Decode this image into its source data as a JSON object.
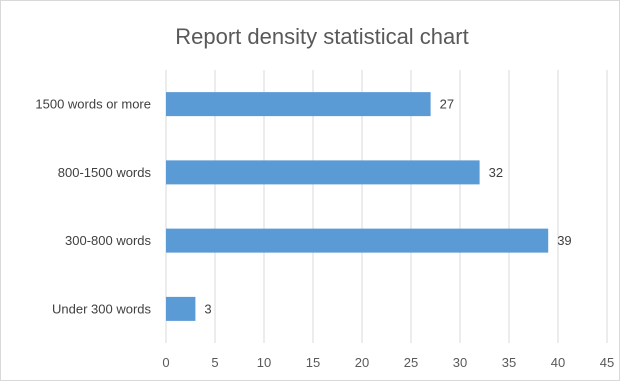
{
  "chart_data": {
    "type": "bar",
    "orientation": "horizontal",
    "title": "Report density statistical chart",
    "categories": [
      "1500 words or more",
      "800-1500 words",
      "300-800 words",
      "Under 300 words"
    ],
    "values": [
      27,
      32,
      39,
      3
    ],
    "data_labels": [
      "27",
      "32",
      "39",
      "3"
    ],
    "x_ticks": [
      "0",
      "5",
      "10",
      "15",
      "20",
      "25",
      "30",
      "35",
      "40",
      "45"
    ],
    "xlim": [
      0,
      45
    ],
    "xlabel": "",
    "ylabel": "",
    "grid": "vertical",
    "legend": "none",
    "bar_color": "#5b9bd5",
    "grid_color": "#d9d9d9"
  }
}
